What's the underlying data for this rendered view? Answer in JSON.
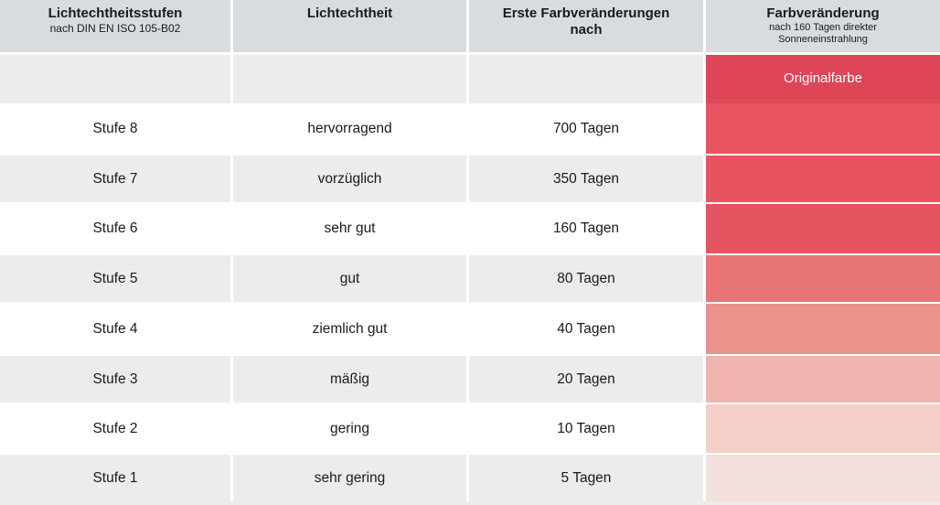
{
  "header": {
    "col1_title": "Lichtechtheitsstufen",
    "col1_sub": "nach DIN EN ISO 105-B02",
    "col2_title": "Lichtechtheit",
    "col3_title_line1": "Erste Farbveränderungen",
    "col3_title_line2": "nach",
    "col4_title": "Farbveränderung",
    "col4_sub_line1": "nach 160 Tagen direkter",
    "col4_sub_line2": "Sonneneinstrahlung"
  },
  "original": {
    "label": "Originalfarbe",
    "color": "#de4556"
  },
  "rows": [
    {
      "stufe": "Stufe 8",
      "lichtechtheit": "hervorragend",
      "tage": "700 Tagen",
      "color": "#e95461"
    },
    {
      "stufe": "Stufe 7",
      "lichtechtheit": "vorzüglich",
      "tage": "350 Tagen",
      "color": "#e85360"
    },
    {
      "stufe": "Stufe 6",
      "lichtechtheit": "sehr gut",
      "tage": "160 Tagen",
      "color": "#e65361"
    },
    {
      "stufe": "Stufe 5",
      "lichtechtheit": "gut",
      "tage": "80 Tagen",
      "color": "#e97475"
    },
    {
      "stufe": "Stufe 4",
      "lichtechtheit": "ziemlich gut",
      "tage": "40 Tagen",
      "color": "#ea938d"
    },
    {
      "stufe": "Stufe 3",
      "lichtechtheit": "mäßig",
      "tage": "20 Tagen",
      "color": "#f0b4ae"
    },
    {
      "stufe": "Stufe 2",
      "lichtechtheit": "gering",
      "tage": "10 Tagen",
      "color": "#f4cfc7"
    },
    {
      "stufe": "Stufe 1",
      "lichtechtheit": "sehr gering",
      "tage": "5 Tagen",
      "color": "#f4e0dc"
    }
  ]
}
